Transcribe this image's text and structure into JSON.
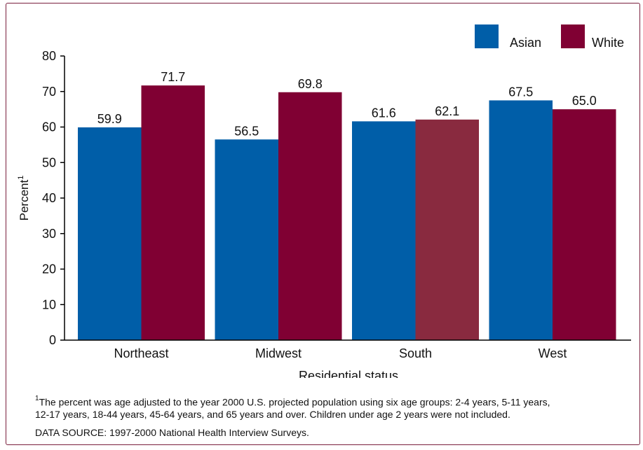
{
  "colors": {
    "asian": "#005ea8",
    "white": "#800033",
    "south_white": "#892a3f",
    "axis": "#000000",
    "frame": "#7a1f3d"
  },
  "chart_data": {
    "type": "bar",
    "categories": [
      "Northeast",
      "Midwest",
      "South",
      "West"
    ],
    "series": [
      {
        "name": "Asian",
        "values": [
          59.9,
          56.5,
          61.6,
          67.5
        ],
        "labels": [
          "59.9",
          "56.5",
          "61.6",
          "67.5"
        ]
      },
      {
        "name": "White",
        "values": [
          71.7,
          69.8,
          62.1,
          65.0
        ],
        "labels": [
          "71.7",
          "69.8",
          "62.1",
          "65.0"
        ]
      }
    ],
    "xlabel": "Residential status",
    "ylabel": "Percent",
    "ylabel_sup": "1",
    "ylim": [
      0,
      80
    ],
    "yticks": [
      "0",
      "10",
      "20",
      "30",
      "40",
      "50",
      "60",
      "70",
      "80"
    ],
    "legend_position": "top-right",
    "grid": false
  },
  "footnote": {
    "marker": "1",
    "line1": "The percent was age adjusted to the year 2000 U.S. projected population using six age groups: 2-4 years, 5-11 years,",
    "line2": "12-17 years, 18-44 years, 45-64 years, and 65 years and over. Children under age 2 years were not included."
  },
  "source": "DATA SOURCE: 1997-2000 National Health Interview Surveys."
}
